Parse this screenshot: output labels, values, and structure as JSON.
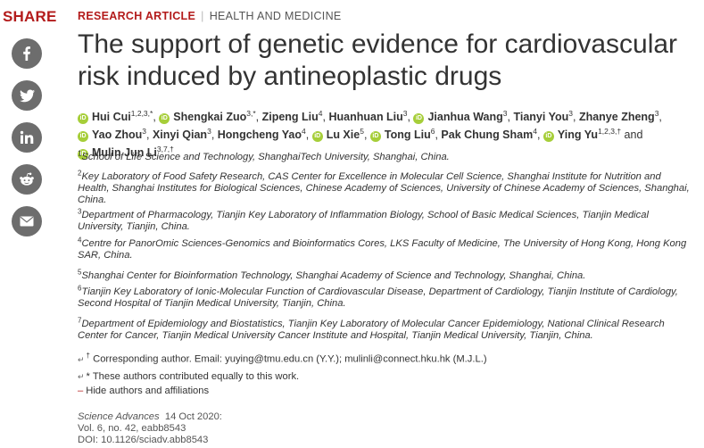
{
  "share": {
    "title": "SHARE",
    "buttons": [
      {
        "icon": "facebook-icon"
      },
      {
        "icon": "twitter-icon"
      },
      {
        "icon": "linkedin-icon"
      },
      {
        "icon": "reddit-icon"
      },
      {
        "icon": "email-icon"
      }
    ]
  },
  "article": {
    "type": "RESEARCH ARTICLE",
    "section": "HEALTH AND MEDICINE",
    "title": "The support of genetic evidence for cardiovascular risk induced by antineoplastic drugs"
  },
  "authors": [
    {
      "name": "Hui Cui",
      "sup": "1,2,3,*",
      "orcid": true
    },
    {
      "name": "Shengkai Zuo",
      "sup": "3,*",
      "orcid": true
    },
    {
      "name": "Zipeng Liu",
      "sup": "4",
      "orcid": false
    },
    {
      "name": "Huanhuan Liu",
      "sup": "3",
      "orcid": false
    },
    {
      "name": "Jianhua Wang",
      "sup": "3",
      "orcid": true
    },
    {
      "name": "Tianyi You",
      "sup": "3",
      "orcid": false
    },
    {
      "name": "Zhanye Zheng",
      "sup": "3",
      "orcid": false
    },
    {
      "name": "Yao Zhou",
      "sup": "3",
      "orcid": true
    },
    {
      "name": "Xinyi Qian",
      "sup": "3",
      "orcid": false
    },
    {
      "name": "Hongcheng Yao",
      "sup": "4",
      "orcid": false
    },
    {
      "name": "Lu Xie",
      "sup": "5",
      "orcid": true
    },
    {
      "name": "Tong Liu",
      "sup": "6",
      "orcid": true
    },
    {
      "name": "Pak Chung Sham",
      "sup": "4",
      "orcid": false
    },
    {
      "name": "Ying Yu",
      "sup": "1,2,3,†",
      "orcid": true
    },
    {
      "name": "Mulin Jun Li",
      "sup": "3,7,†",
      "orcid": true
    }
  ],
  "author_connector": "and",
  "affiliations": [
    {
      "num": "1",
      "text": "School of Life Science and Technology, ShanghaiTech University, Shanghai, China."
    },
    {
      "num": "2",
      "text": "Key Laboratory of Food Safety Research, CAS Center for Excellence in Molecular Cell Science, Shanghai Institute for Nutrition and Health, Shanghai Institutes for Biological Sciences, Chinese Academy of Sciences, University of Chinese Academy of Sciences, Shanghai, China."
    },
    {
      "num": "3",
      "text": "Department of Pharmacology, Tianjin Key Laboratory of Inflammation Biology, School of Basic Medical Sciences, Tianjin Medical University, Tianjin, China."
    },
    {
      "num": "4",
      "text": "Centre for PanorOmic Sciences-Genomics and Bioinformatics Cores, LKS Faculty of Medicine, The University of Hong Kong, Hong Kong SAR, China."
    },
    {
      "num": "5",
      "text": "Shanghai Center for Bioinformation Technology, Shanghai Academy of Science and Technology, Shanghai, China."
    },
    {
      "num": "6",
      "text": "Tianjin Key Laboratory of Ionic-Molecular Function of Cardiovascular Disease, Department of Cardiology, Tianjin Institute of Cardiology, Second Hospital of Tianjin Medical University, Tianjin, China."
    },
    {
      "num": "7",
      "text": "Department of Epidemiology and Biostatistics, Tianjin Key Laboratory of Molecular Cancer Epidemiology, National Clinical Research Center for Cancer, Tianjin Medical University Cancer Institute and Hospital, Tianjin Medical University, Tianjin, China."
    }
  ],
  "corresponding": {
    "symbol": "†",
    "label": "Corresponding author. Email:",
    "email1": "yuying@tmu.edu.cn",
    "who1": "(Y.Y.);",
    "email2": "mulinli@connect.hku.hk",
    "who2": "(M.J.L.)"
  },
  "equal_note": {
    "symbol": "*",
    "text": "These authors contributed equally to this work."
  },
  "hide_toggle": {
    "symbol": "–",
    "label": "Hide authors and affiliations"
  },
  "citation": {
    "journal": "Science Advances",
    "date": "14 Oct 2020:",
    "volume": "Vol. 6, no. 42, eabb8543",
    "doi": "DOI: 10.1126/sciadv.abb8543"
  }
}
